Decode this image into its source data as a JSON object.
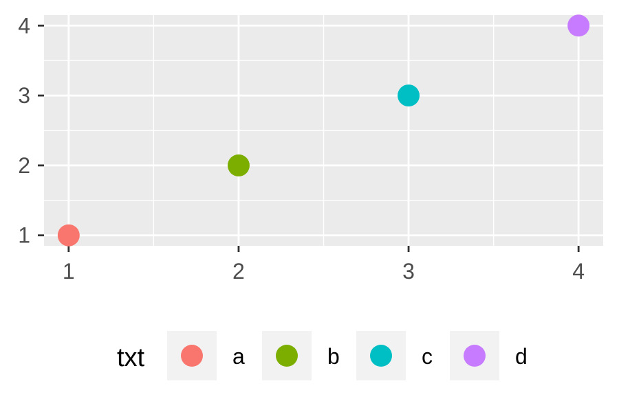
{
  "chart_data": {
    "type": "scatter",
    "x": [
      1,
      2,
      3,
      4
    ],
    "y": [
      1,
      2,
      3,
      4
    ],
    "groups": [
      "a",
      "b",
      "c",
      "d"
    ],
    "colors": [
      "#F8766D",
      "#7CAE00",
      "#00BFC4",
      "#C77CFF"
    ],
    "xlim": [
      0.855,
      4.145
    ],
    "ylim": [
      0.85,
      4.15
    ],
    "x_ticks": [
      "1",
      "2",
      "3",
      "4"
    ],
    "y_ticks": [
      "1",
      "2",
      "3",
      "4"
    ],
    "grid": true,
    "panel_background": "#EBEBEB",
    "legend": {
      "title": "txt",
      "position": "bottom",
      "entries": [
        "a",
        "b",
        "c",
        "d"
      ]
    }
  }
}
